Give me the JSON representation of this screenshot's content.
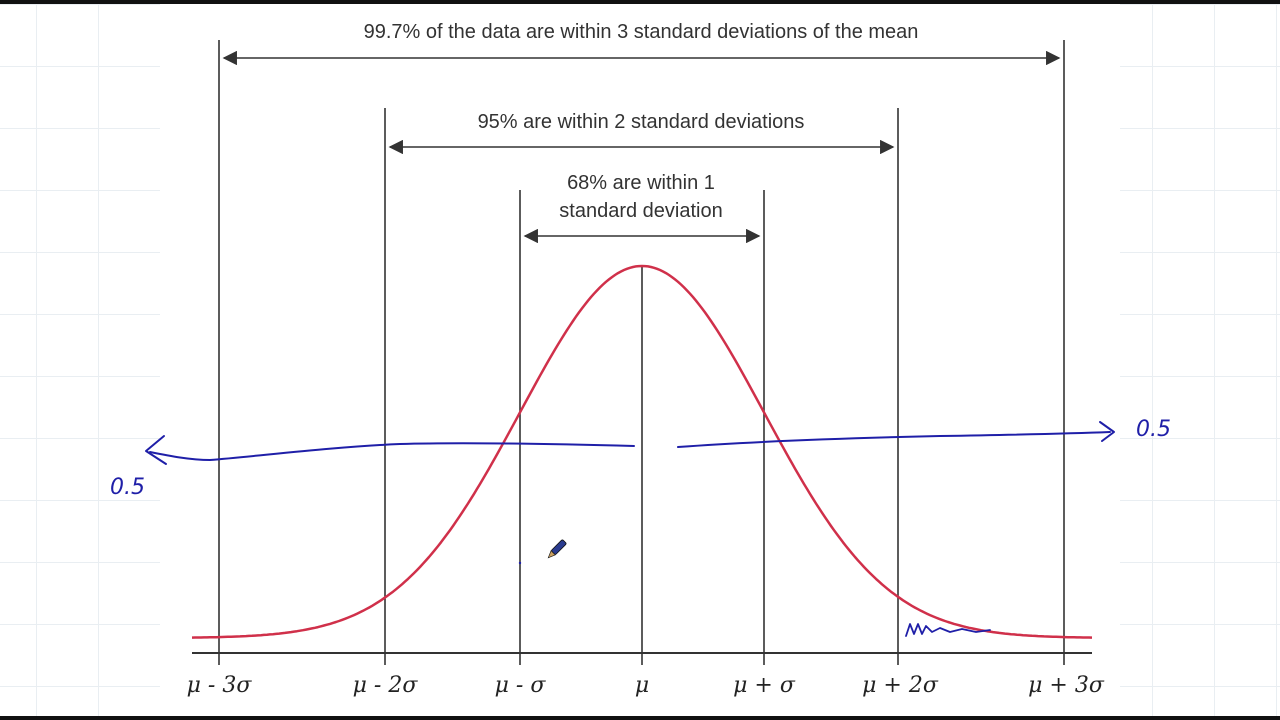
{
  "labels": {
    "range3": "99.7% of the data are within 3 standard deviations of the mean",
    "range2": "95% are within 2 standard deviations",
    "range1_line1": "68% are within 1",
    "range1_line2": "standard deviation"
  },
  "ticks": [
    "μ - 3σ",
    "μ - 2σ",
    "μ - σ",
    "μ",
    "μ + σ",
    "μ + 2σ",
    "μ + 3σ"
  ],
  "annotations": {
    "left_value": "0.5",
    "right_value": "0.5"
  },
  "colors": {
    "curve": "#d0304a",
    "ink": "#1f1fa8",
    "lines": "#333333"
  }
}
